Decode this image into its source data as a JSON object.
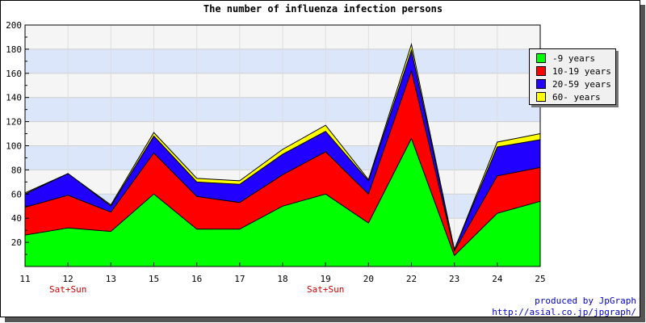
{
  "chart_data": {
    "type": "area",
    "stacked": true,
    "title": "The number of influenza infection persons",
    "categories": [
      "11",
      "12",
      "13",
      "15",
      "16",
      "17",
      "18",
      "19",
      "20",
      "22",
      "23",
      "24",
      "25"
    ],
    "sublabels": [
      "",
      "Sat+Sun",
      "",
      "",
      "",
      "",
      "",
      "Sat+Sun",
      "",
      "",
      "",
      "",
      ""
    ],
    "ylim": [
      0,
      200
    ],
    "yticks": [
      20,
      40,
      60,
      80,
      100,
      120,
      140,
      160,
      180,
      200
    ],
    "grid": true,
    "legend_position": "right",
    "series": [
      {
        "name": "-9 years",
        "color": "#00ff00",
        "values": [
          26,
          32,
          29,
          60,
          31,
          31,
          50,
          60,
          36,
          106,
          9,
          44,
          54
        ]
      },
      {
        "name": "10-19 years",
        "color": "#ff0000",
        "values": [
          23,
          27,
          16,
          34,
          27,
          22,
          26,
          35,
          24,
          56,
          4,
          31,
          28
        ]
      },
      {
        "name": "20-59 years",
        "color": "#2200ff",
        "values": [
          11,
          18,
          5,
          14,
          12,
          15,
          17,
          17,
          11,
          17,
          1,
          24,
          23
        ]
      },
      {
        "name": "60- years",
        "color": "#ffff00",
        "values": [
          1,
          0,
          1,
          3,
          3,
          3,
          4,
          5,
          1,
          5,
          0,
          4,
          5
        ]
      }
    ]
  },
  "footer": {
    "line1": "produced by JpGraph",
    "line2": "http://asial.co.jp/jpgraph/"
  }
}
